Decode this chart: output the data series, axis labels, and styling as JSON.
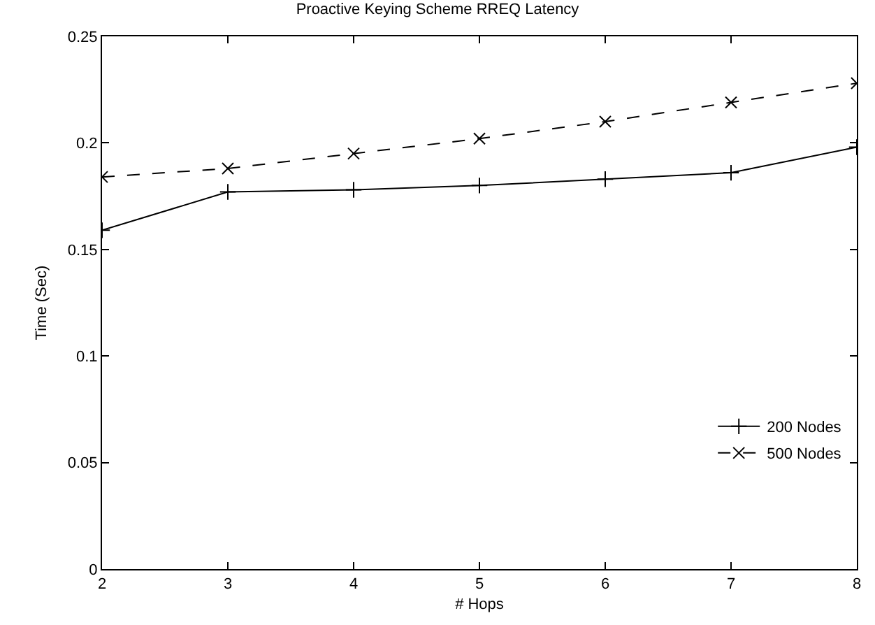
{
  "chart_data": {
    "type": "line",
    "title": "Proactive Keying Scheme RREQ Latency",
    "xlabel": "# Hops",
    "ylabel": "Time (Sec)",
    "x": [
      2,
      3,
      4,
      5,
      6,
      7,
      8
    ],
    "series": [
      {
        "name": "200 Nodes",
        "color": "#000000",
        "marker": "cross",
        "line_style": "solid",
        "values": [
          0.159,
          0.177,
          0.178,
          0.18,
          0.183,
          0.186,
          0.198
        ]
      },
      {
        "name": "500 Nodes",
        "color": "#000000",
        "marker": "x",
        "line_style": "dashed",
        "values": [
          0.184,
          0.188,
          0.195,
          0.202,
          0.21,
          0.219,
          0.228
        ]
      }
    ],
    "xlim": [
      2,
      8
    ],
    "xticks": [
      2,
      3,
      4,
      5,
      6,
      7,
      8
    ],
    "ylim": [
      0,
      0.25
    ],
    "yticks": [
      0,
      0.05,
      0.1,
      0.15,
      0.2,
      0.25
    ],
    "legend": "bottom right"
  }
}
